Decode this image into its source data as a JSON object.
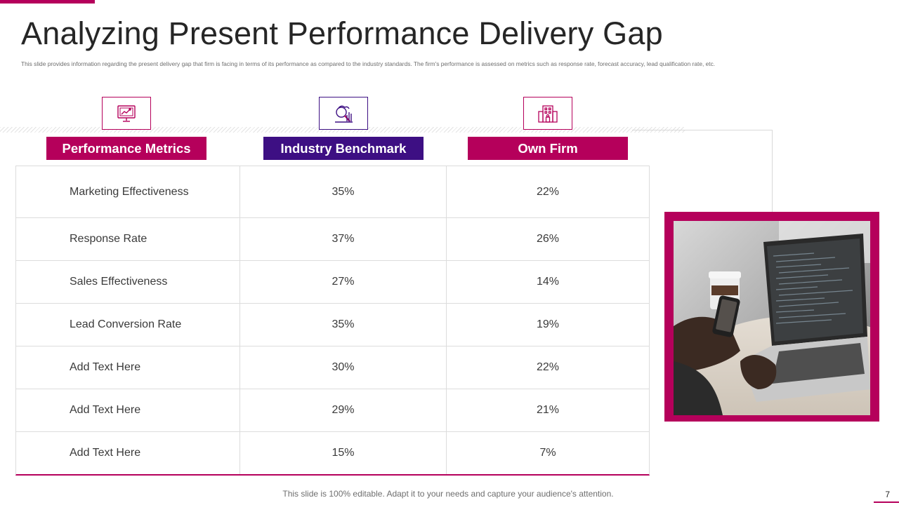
{
  "header": {
    "title": "Analyzing Present Performance Delivery Gap",
    "subtitle": "This slide provides information regarding the present delivery gap that firm is facing in terms of its performance as compared  to the industry standards. The firm's performance is assessed on metrics such as response rate, forecast accuracy, lead qualification rate, etc."
  },
  "icons": [
    "monitor-chart-icon",
    "analytics-search-icon",
    "office-building-icon"
  ],
  "columns": [
    "Performance Metrics",
    "Industry Benchmark",
    "Own Firm"
  ],
  "rows": [
    {
      "metric": "Marketing Effectiveness",
      "benchmark": "35%",
      "firm": "22%"
    },
    {
      "metric": "Response Rate",
      "benchmark": "37%",
      "firm": "26%"
    },
    {
      "metric": "Sales Effectiveness",
      "benchmark": "27%",
      "firm": "14%"
    },
    {
      "metric": "Lead Conversion Rate",
      "benchmark": "35%",
      "firm": "19%"
    },
    {
      "metric": "Add Text Here",
      "benchmark": "30%",
      "firm": "22%"
    },
    {
      "metric": "Add Text Here",
      "benchmark": "29%",
      "firm": "21%"
    },
    {
      "metric": "Add Text Here",
      "benchmark": "15%",
      "firm": "7%"
    }
  ],
  "footer": {
    "note": "This slide is 100% editable. Adapt it to your needs and capture your audience's attention.",
    "page_number": "7"
  },
  "colors": {
    "magenta": "#b5005b",
    "purple": "#3d0f83"
  }
}
